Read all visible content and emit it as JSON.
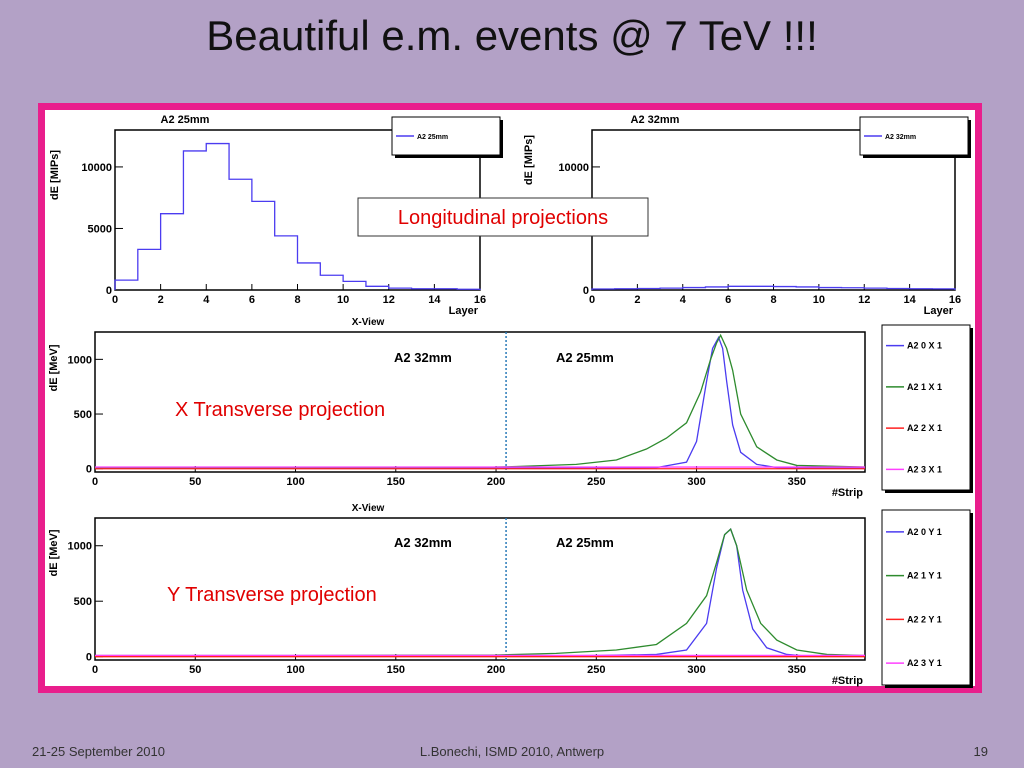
{
  "slide": {
    "title": "Beautiful e.m. events @ 7 TeV !!!",
    "footer_date": "21-25 September 2010",
    "footer_author": "L.Bonechi, ISMD 2010, Antwerp",
    "footer_page": "19"
  },
  "annotations": {
    "longitudinal": "Longitudinal projections",
    "x_transverse": "X Transverse projection",
    "y_transverse": "Y Transverse projection",
    "a2_32mm": "A2 32mm",
    "a2_25mm": "A2 25mm"
  },
  "colors": {
    "background": "#b3a1c6",
    "frame": "#e91e8c",
    "series_0": "#4b3cf0",
    "series_1": "#2e8b2e",
    "series_2": "#ff2020",
    "series_3": "#ff40ff",
    "annotation_red": "#e00000",
    "divider": "#2a7ab8"
  },
  "chart_data": [
    {
      "id": "long-25",
      "type": "line",
      "title": "A2 25mm",
      "xlabel": "Layer",
      "ylabel": "dE [MIPs]",
      "subtitle": "X-View",
      "xlim": [
        0,
        16
      ],
      "ylim": [
        0,
        13000
      ],
      "xticks": [
        0,
        2,
        4,
        6,
        8,
        10,
        12,
        14,
        16
      ],
      "yticks": [
        0,
        5000,
        10000
      ],
      "legend": [
        "A2 25mm"
      ],
      "legend_position": "top-right",
      "series": [
        {
          "name": "A2 25mm",
          "color": "#4b3cf0",
          "step": true,
          "values": [
            800,
            3300,
            6200,
            11300,
            11900,
            9000,
            7200,
            4400,
            2200,
            1200,
            700,
            300,
            150,
            100,
            100,
            60
          ]
        }
      ]
    },
    {
      "id": "long-32",
      "type": "line",
      "title": "A2 32mm",
      "xlabel": "Layer",
      "ylabel": "dE [MIPs]",
      "xlim": [
        0,
        16
      ],
      "ylim": [
        0,
        13000
      ],
      "xticks": [
        0,
        2,
        4,
        6,
        8,
        10,
        12,
        14,
        16
      ],
      "yticks": [
        0,
        10000
      ],
      "legend": [
        "A2 32mm"
      ],
      "legend_position": "top-right",
      "series": [
        {
          "name": "A2 32mm",
          "color": "#4b3cf0",
          "step": true,
          "values": [
            80,
            100,
            120,
            150,
            200,
            250,
            300,
            300,
            280,
            250,
            200,
            180,
            150,
            120,
            100,
            90
          ]
        }
      ]
    },
    {
      "id": "trans-x",
      "type": "line",
      "xlabel": "#Strip",
      "ylabel": "dE [MeV]",
      "subtitle": "X-View",
      "xlim": [
        0,
        384
      ],
      "ylim": [
        -30,
        1250
      ],
      "xticks": [
        0,
        50,
        100,
        150,
        200,
        250,
        300,
        350
      ],
      "yticks": [
        0,
        500,
        1000
      ],
      "legend_position": "right",
      "series": [
        {
          "name": "A2 0 X 1",
          "color": "#4b3cf0",
          "x": [
            0,
            50,
            100,
            200,
            250,
            280,
            295,
            300,
            305,
            308,
            311,
            313,
            315,
            318,
            322,
            330,
            340,
            350,
            384
          ],
          "y": [
            5,
            5,
            5,
            5,
            5,
            10,
            60,
            250,
            800,
            1100,
            1200,
            1100,
            800,
            400,
            150,
            40,
            10,
            5,
            5
          ]
        },
        {
          "name": "A2 1 X 1",
          "color": "#2e8b2e",
          "x": [
            0,
            50,
            100,
            200,
            210,
            240,
            260,
            275,
            285,
            295,
            302,
            307,
            310,
            312,
            315,
            318,
            322,
            330,
            340,
            350,
            384
          ],
          "y": [
            10,
            10,
            10,
            15,
            20,
            40,
            80,
            180,
            280,
            420,
            700,
            1000,
            1150,
            1220,
            1100,
            900,
            500,
            200,
            80,
            30,
            15
          ]
        },
        {
          "name": "A2 2 X 1",
          "color": "#ff2020",
          "x": [
            0,
            384
          ],
          "y": [
            0,
            0
          ]
        },
        {
          "name": "A2 3 X 1",
          "color": "#ff40ff",
          "x": [
            0,
            384
          ],
          "y": [
            15,
            15
          ]
        }
      ],
      "divider_x": 205
    },
    {
      "id": "trans-y",
      "type": "line",
      "xlabel": "#Strip",
      "ylabel": "dE [MeV]",
      "xlim": [
        0,
        384
      ],
      "ylim": [
        -30,
        1250
      ],
      "xticks": [
        0,
        50,
        100,
        150,
        200,
        250,
        300,
        350
      ],
      "yticks": [
        0,
        500,
        1000
      ],
      "legend_position": "right",
      "series": [
        {
          "name": "A2 0 Y 1",
          "color": "#4b3cf0",
          "x": [
            0,
            50,
            100,
            200,
            250,
            280,
            295,
            305,
            310,
            314,
            317,
            320,
            323,
            328,
            335,
            345,
            355,
            384
          ],
          "y": [
            5,
            5,
            5,
            5,
            10,
            20,
            60,
            300,
            800,
            1100,
            1150,
            1000,
            600,
            250,
            80,
            20,
            5,
            5
          ]
        },
        {
          "name": "A2 1 Y 1",
          "color": "#2e8b2e",
          "x": [
            0,
            50,
            100,
            200,
            230,
            260,
            280,
            295,
            305,
            310,
            314,
            317,
            320,
            325,
            332,
            340,
            350,
            365,
            384
          ],
          "y": [
            10,
            10,
            10,
            15,
            30,
            60,
            110,
            300,
            550,
            850,
            1100,
            1150,
            1000,
            600,
            300,
            150,
            60,
            20,
            10
          ]
        },
        {
          "name": "A2 2 Y 1",
          "color": "#ff2020",
          "x": [
            0,
            384
          ],
          "y": [
            0,
            0
          ]
        },
        {
          "name": "A2 3 Y 1",
          "color": "#ff40ff",
          "x": [
            0,
            384
          ],
          "y": [
            12,
            12
          ]
        }
      ],
      "divider_x": 205
    }
  ]
}
